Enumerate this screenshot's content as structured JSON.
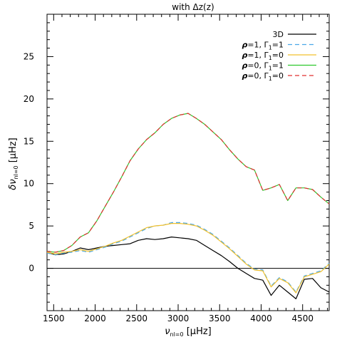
{
  "chart_data": {
    "type": "line",
    "title": "with Δz(z)",
    "xlabel": "ν",
    "xlabel_sub": "nl=0",
    "xlabel_unit": "[μHz]",
    "ylabel": "δν",
    "ylabel_sub": "nl=0",
    "ylabel_unit": "[μHz]",
    "xlim": [
      1420,
      4820
    ],
    "ylim": [
      -5,
      30
    ],
    "xticks": [
      1500,
      2000,
      2500,
      3000,
      3500,
      4000,
      4500
    ],
    "xtick_labels": [
      "1500",
      "2000",
      "2500",
      "3000",
      "3500",
      "4000",
      "4500"
    ],
    "yticks": [
      0,
      5,
      10,
      15,
      20,
      25
    ],
    "ytick_labels": [
      "0",
      "5",
      "10",
      "15",
      "20",
      "25"
    ],
    "zero_line": 0,
    "legend_position": "top-right",
    "series": [
      {
        "name": "3D",
        "label_parts": [
          "3D"
        ],
        "color": "#000000",
        "dash": "solid",
        "x": [
          1420,
          1520,
          1620,
          1720,
          1820,
          1920,
          2020,
          2120,
          2220,
          2320,
          2420,
          2520,
          2620,
          2720,
          2820,
          2920,
          3020,
          3120,
          3220,
          3320,
          3420,
          3520,
          3620,
          3720,
          3820,
          3920,
          4020,
          4120,
          4220,
          4320,
          4420,
          4520,
          4620,
          4720,
          4820
        ],
        "values": [
          1.9,
          1.6,
          1.7,
          2.0,
          2.4,
          2.2,
          2.4,
          2.6,
          2.7,
          2.8,
          2.9,
          3.3,
          3.5,
          3.4,
          3.5,
          3.7,
          3.6,
          3.5,
          3.3,
          2.7,
          2.1,
          1.5,
          0.8,
          0.0,
          -0.6,
          -1.2,
          -1.4,
          -3.2,
          -2.0,
          -2.8,
          -3.6,
          -1.3,
          -1.2,
          -2.3,
          -2.8
        ]
      },
      {
        "name": "ρ=1, Γ₁=1",
        "label_parts": [
          "ρ",
          "=1,  ",
          "Γ",
          "1",
          "=1"
        ],
        "color": "#4aa8e8",
        "dash": "6,4",
        "x": [
          1420,
          1520,
          1620,
          1720,
          1820,
          1920,
          2020,
          2120,
          2220,
          2320,
          2420,
          2520,
          2620,
          2720,
          2820,
          2920,
          3020,
          3120,
          3220,
          3320,
          3420,
          3520,
          3620,
          3720,
          3820,
          3920,
          4020,
          4120,
          4220,
          4320,
          4420,
          4520,
          4620,
          4720,
          4820
        ],
        "values": [
          1.8,
          1.6,
          1.8,
          1.9,
          2.1,
          1.9,
          2.2,
          2.5,
          2.9,
          3.2,
          3.7,
          4.2,
          4.7,
          5.0,
          5.1,
          5.4,
          5.4,
          5.3,
          5.1,
          4.6,
          4.0,
          3.2,
          2.4,
          1.5,
          0.6,
          -0.1,
          -0.2,
          -2.1,
          -1.1,
          -1.6,
          -2.8,
          -0.9,
          -0.6,
          -0.3,
          0.6
        ]
      },
      {
        "name": "ρ=1, Γ₁=0",
        "label_parts": [
          "ρ",
          "=1,  ",
          "Γ",
          "1",
          "=0"
        ],
        "color": "#f2c12e",
        "dash": "solid",
        "x": [
          1420,
          1520,
          1620,
          1720,
          1820,
          1920,
          2020,
          2120,
          2220,
          2320,
          2420,
          2520,
          2620,
          2720,
          2820,
          2920,
          3020,
          3120,
          3220,
          3320,
          3420,
          3520,
          3620,
          3720,
          3820,
          3920,
          4020,
          4120,
          4220,
          4320,
          4420,
          4520,
          4620,
          4720,
          4820
        ],
        "values": [
          1.9,
          1.7,
          1.9,
          2.0,
          2.2,
          2.0,
          2.3,
          2.6,
          3.0,
          3.3,
          3.8,
          4.3,
          4.8,
          5.0,
          5.1,
          5.3,
          5.3,
          5.2,
          5.0,
          4.5,
          3.9,
          3.1,
          2.3,
          1.4,
          0.5,
          -0.2,
          -0.3,
          -2.2,
          -1.2,
          -1.7,
          -2.9,
          -1.0,
          -0.7,
          -0.4,
          0.5
        ]
      },
      {
        "name": "ρ=0, Γ₁=1",
        "label_parts": [
          "ρ",
          "=0,  ",
          "Γ",
          "1",
          "=1"
        ],
        "color": "#2ec82e",
        "dash": "solid",
        "x": [
          1420,
          1520,
          1620,
          1720,
          1820,
          1920,
          2020,
          2120,
          2220,
          2320,
          2420,
          2520,
          2620,
          2720,
          2820,
          2920,
          3020,
          3120,
          3220,
          3320,
          3420,
          3520,
          3620,
          3720,
          3820,
          3920,
          4020,
          4120,
          4220,
          4320,
          4420,
          4520,
          4620,
          4720,
          4820
        ],
        "values": [
          2.0,
          1.9,
          2.1,
          2.7,
          3.7,
          4.2,
          5.6,
          7.3,
          9.0,
          10.8,
          12.7,
          14.1,
          15.2,
          16.0,
          17.0,
          17.7,
          18.1,
          18.3,
          17.7,
          17.0,
          16.1,
          15.2,
          14.0,
          12.9,
          12.0,
          11.6,
          9.2,
          9.5,
          9.9,
          8.0,
          9.5,
          9.5,
          9.3,
          8.4,
          7.6
        ]
      },
      {
        "name": "ρ=0, Γ₁=0",
        "label_parts": [
          "ρ",
          "=0,  ",
          "Γ",
          "1",
          "=0"
        ],
        "color": "#e03030",
        "dash": "6,4",
        "x": [
          1420,
          1520,
          1620,
          1720,
          1820,
          1920,
          2020,
          2120,
          2220,
          2320,
          2420,
          2520,
          2620,
          2720,
          2820,
          2920,
          3020,
          3120,
          3220,
          3320,
          3420,
          3520,
          3620,
          3720,
          3820,
          3920,
          4020,
          4120,
          4220,
          4320,
          4420,
          4520,
          4620,
          4720,
          4820
        ],
        "values": [
          2.0,
          1.9,
          2.1,
          2.7,
          3.7,
          4.2,
          5.6,
          7.3,
          9.0,
          10.8,
          12.7,
          14.1,
          15.2,
          16.0,
          17.0,
          17.7,
          18.1,
          18.3,
          17.7,
          17.0,
          16.1,
          15.2,
          14.0,
          12.9,
          12.0,
          11.6,
          9.2,
          9.5,
          9.9,
          8.0,
          9.5,
          9.5,
          9.3,
          8.4,
          7.6
        ]
      }
    ]
  }
}
